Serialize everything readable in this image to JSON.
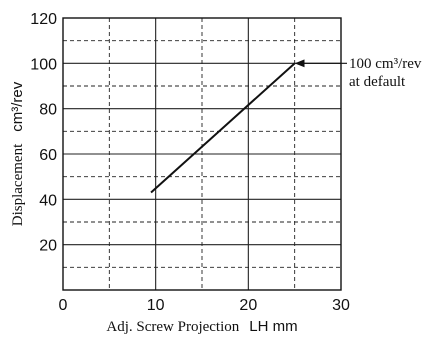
{
  "chart_data": {
    "type": "line",
    "x": [
      9.5,
      25
    ],
    "y": [
      43,
      100
    ],
    "xlim": [
      0,
      30
    ],
    "ylim": [
      0,
      120
    ],
    "xticks": [
      "0",
      "10",
      "20",
      "30"
    ],
    "yticks": [
      "20",
      "40",
      "60",
      "80",
      "100",
      "120"
    ],
    "xlabel_serif": "Adj. Screw Projection",
    "xlabel_sans": "LH mm",
    "ylabel_serif": "Displacement",
    "ylabel_sans": "cm³/rev",
    "grid": true,
    "annotation": {
      "line1": "100 cm³/rev",
      "line2": "at default",
      "x": 25,
      "y": 100
    }
  }
}
